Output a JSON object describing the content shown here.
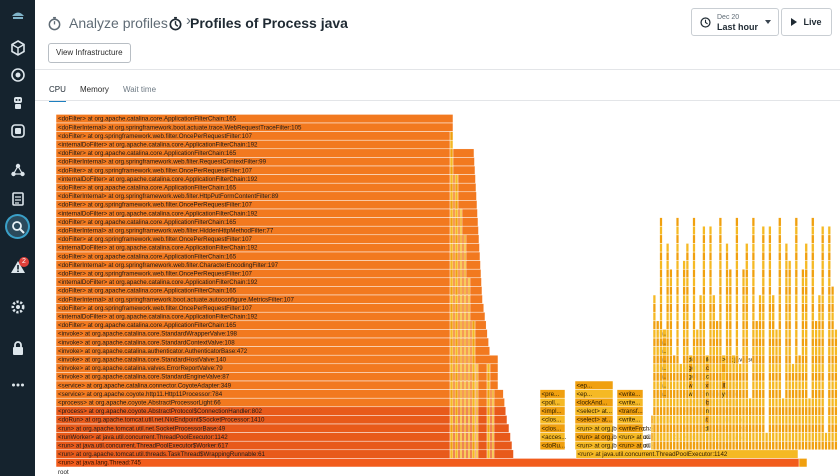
{
  "header": {
    "parent_title": "Analyze profiles",
    "title": "Profiles of Process java",
    "infra_button": "View Infrastructure"
  },
  "time_picker": {
    "date": "Dec 20",
    "range": "Last hour"
  },
  "live_button": "Live",
  "tabs": [
    "CPU",
    "Memory",
    "Wait time"
  ],
  "rail_icons": [
    "logo-icon",
    "cube-icon",
    "target-icon",
    "robot-icon",
    "kubernetes-icon",
    "clipboard-icon",
    "hierarchy-icon",
    "dashboard-icon",
    "search-icon",
    "alert-icon",
    "gear-icon",
    "lock-icon",
    "more-icon"
  ],
  "alert_count": "2",
  "colors": {
    "rail": "#15232e",
    "frame_main": "#f2791f",
    "frame_deep": "#e85a1a",
    "frame_yellow": "#f5b924",
    "frame_amber": "#f0a00f",
    "bottom_bar": "#f25c1c"
  },
  "flame": {
    "stack": [
      "<doFilter> at org.apache.catalina.core.ApplicationFilterChain:165",
      "<doFilterInternal> at org.springframework.boot.actuate.trace.WebRequestTraceFilter:105",
      "<doFilter> at org.springframework.web.filter.OncePerRequestFilter:107",
      "<internalDoFilter> at org.apache.catalina.core.ApplicationFilterChain:192",
      "<doFilter> at org.apache.catalina.core.ApplicationFilterChain:165",
      "<doFilterInternal> at org.springframework.web.filter.RequestContextFilter:99",
      "<doFilter> at org.springframework.web.filter.OncePerRequestFilter:107",
      "<internalDoFilter> at org.apache.catalina.core.ApplicationFilterChain:192",
      "<doFilter> at org.apache.catalina.core.ApplicationFilterChain:165",
      "<doFilterInternal> at org.springframework.web.filter.HttpPutFormContentFilter:89",
      "<doFilter> at org.springframework.web.filter.OncePerRequestFilter:107",
      "<internalDoFilter> at org.apache.catalina.core.ApplicationFilterChain:192",
      "<doFilter> at org.apache.catalina.core.ApplicationFilterChain:165",
      "<doFilterInternal> at org.springframework.web.filter.HiddenHttpMethodFilter:77",
      "<doFilter> at org.springframework.web.filter.OncePerRequestFilter:107",
      "<internalDoFilter> at org.apache.catalina.core.ApplicationFilterChain:192",
      "<doFilter> at org.apache.catalina.core.ApplicationFilterChain:165",
      "<doFilterInternal> at org.springframework.web.filter.CharacterEncodingFilter:197",
      "<doFilter> at org.springframework.web.filter.OncePerRequestFilter:107",
      "<internalDoFilter> at org.apache.catalina.core.ApplicationFilterChain:192",
      "<doFilter> at org.apache.catalina.core.ApplicationFilterChain:165",
      "<doFilterInternal> at org.springframework.boot.actuate.autoconfigure.MetricsFilter:107",
      "<doFilter> at org.springframework.web.filter.OncePerRequestFilter:107",
      "<internalDoFilter> at org.apache.catalina.core.ApplicationFilterChain:192",
      "<doFilter> at org.apache.catalina.core.ApplicationFilterChain:165",
      "<invoke> at org.apache.catalina.core.StandardWrapperValve:198",
      "<invoke> at org.apache.catalina.core.StandardContextValve:108",
      "<invoke> at org.apache.catalina.authenticator.AuthenticatorBase:472",
      "<invoke> at org.apache.catalina.core.StandardHostValve:140",
      "<invoke> at org.apache.catalina.valves.ErrorReportValve:79",
      "<invoke> at org.apache.catalina.core.StandardEngineValve:87",
      "<service> at org.apache.catalina.connector.CoyoteAdapter:349",
      "<service> at org.apache.coyote.http11.Http11Processor:784",
      "<process> at org.apache.coyote.AbstractProcessorLight:66",
      "<process> at org.apache.coyote.AbstractProtocol$ConnectionHandler:802",
      "<doRun> at org.apache.tomcat.util.net.NioEndpoint$SocketProcessor:1410",
      "<run> at org.apache.tomcat.util.net.SocketProcessorBase:49",
      "<runWorker> at java.util.concurrent.ThreadPoolExecutor:1142",
      "<run> at java.util.concurrent.ThreadPoolExecutor$Worker:617",
      "<run> at org.apache.tomcat.util.threads.TaskThread$WrappingRunnable:61",
      "<run> at java.lang.Thread:745"
    ],
    "root_label": "root",
    "side_frames": [
      {
        "col": 0,
        "labels": [
          "<pre...",
          "<poll...",
          "<impl...",
          "<clos...",
          "<clos...",
          "<acces...",
          "<doRu..."
        ]
      },
      {
        "col": 1,
        "labels": [
          "<ep...",
          "<ep...",
          "<lockAnd...",
          "<select> at...",
          "<select> at...",
          "<run> at org.jboss.netty.channel.soc...",
          "<run> at org.jboss.netty.util.ThreadR...",
          "<run> at org.jboss.netty.util.internal...."
        ]
      },
      {
        "col": 2,
        "labels": [
          "<write...",
          "<write...",
          "<transf...",
          "<write...",
          "<writeFro...",
          "<run> at o...",
          "<run> at o..."
        ]
      },
      {
        "col": 3,
        "labels": [
          "<pro...",
          "<fir...",
          "<fir...",
          "<fir..."
        ]
      },
      {
        "col": 4,
        "labels": [
          "<m...",
          "<m...",
          "<m...",
          "<m...",
          "<m...",
          "<m...",
          "<m...",
          "<m..."
        ]
      },
      {
        "col": 5,
        "labels": [
          "<doPrivileged> at java.se...",
          "<getStac...",
          "<getStac...",
          "<writeExternalDate...",
          "<writeOrdinaryObje...",
          "<writeObject0> at j...",
          "<writeUnshared> at jav...",
          "<call> at java.util.con...",
          "<runAndReset> at java.uti...",
          "<access$301> at java.uti...",
          "<run> at java.util.con..."
        ]
      },
      {
        "col": 6,
        "labels": [
          "<run> at java.util.concurrent.ThreadPoolExecutor:1142"
        ]
      }
    ]
  }
}
